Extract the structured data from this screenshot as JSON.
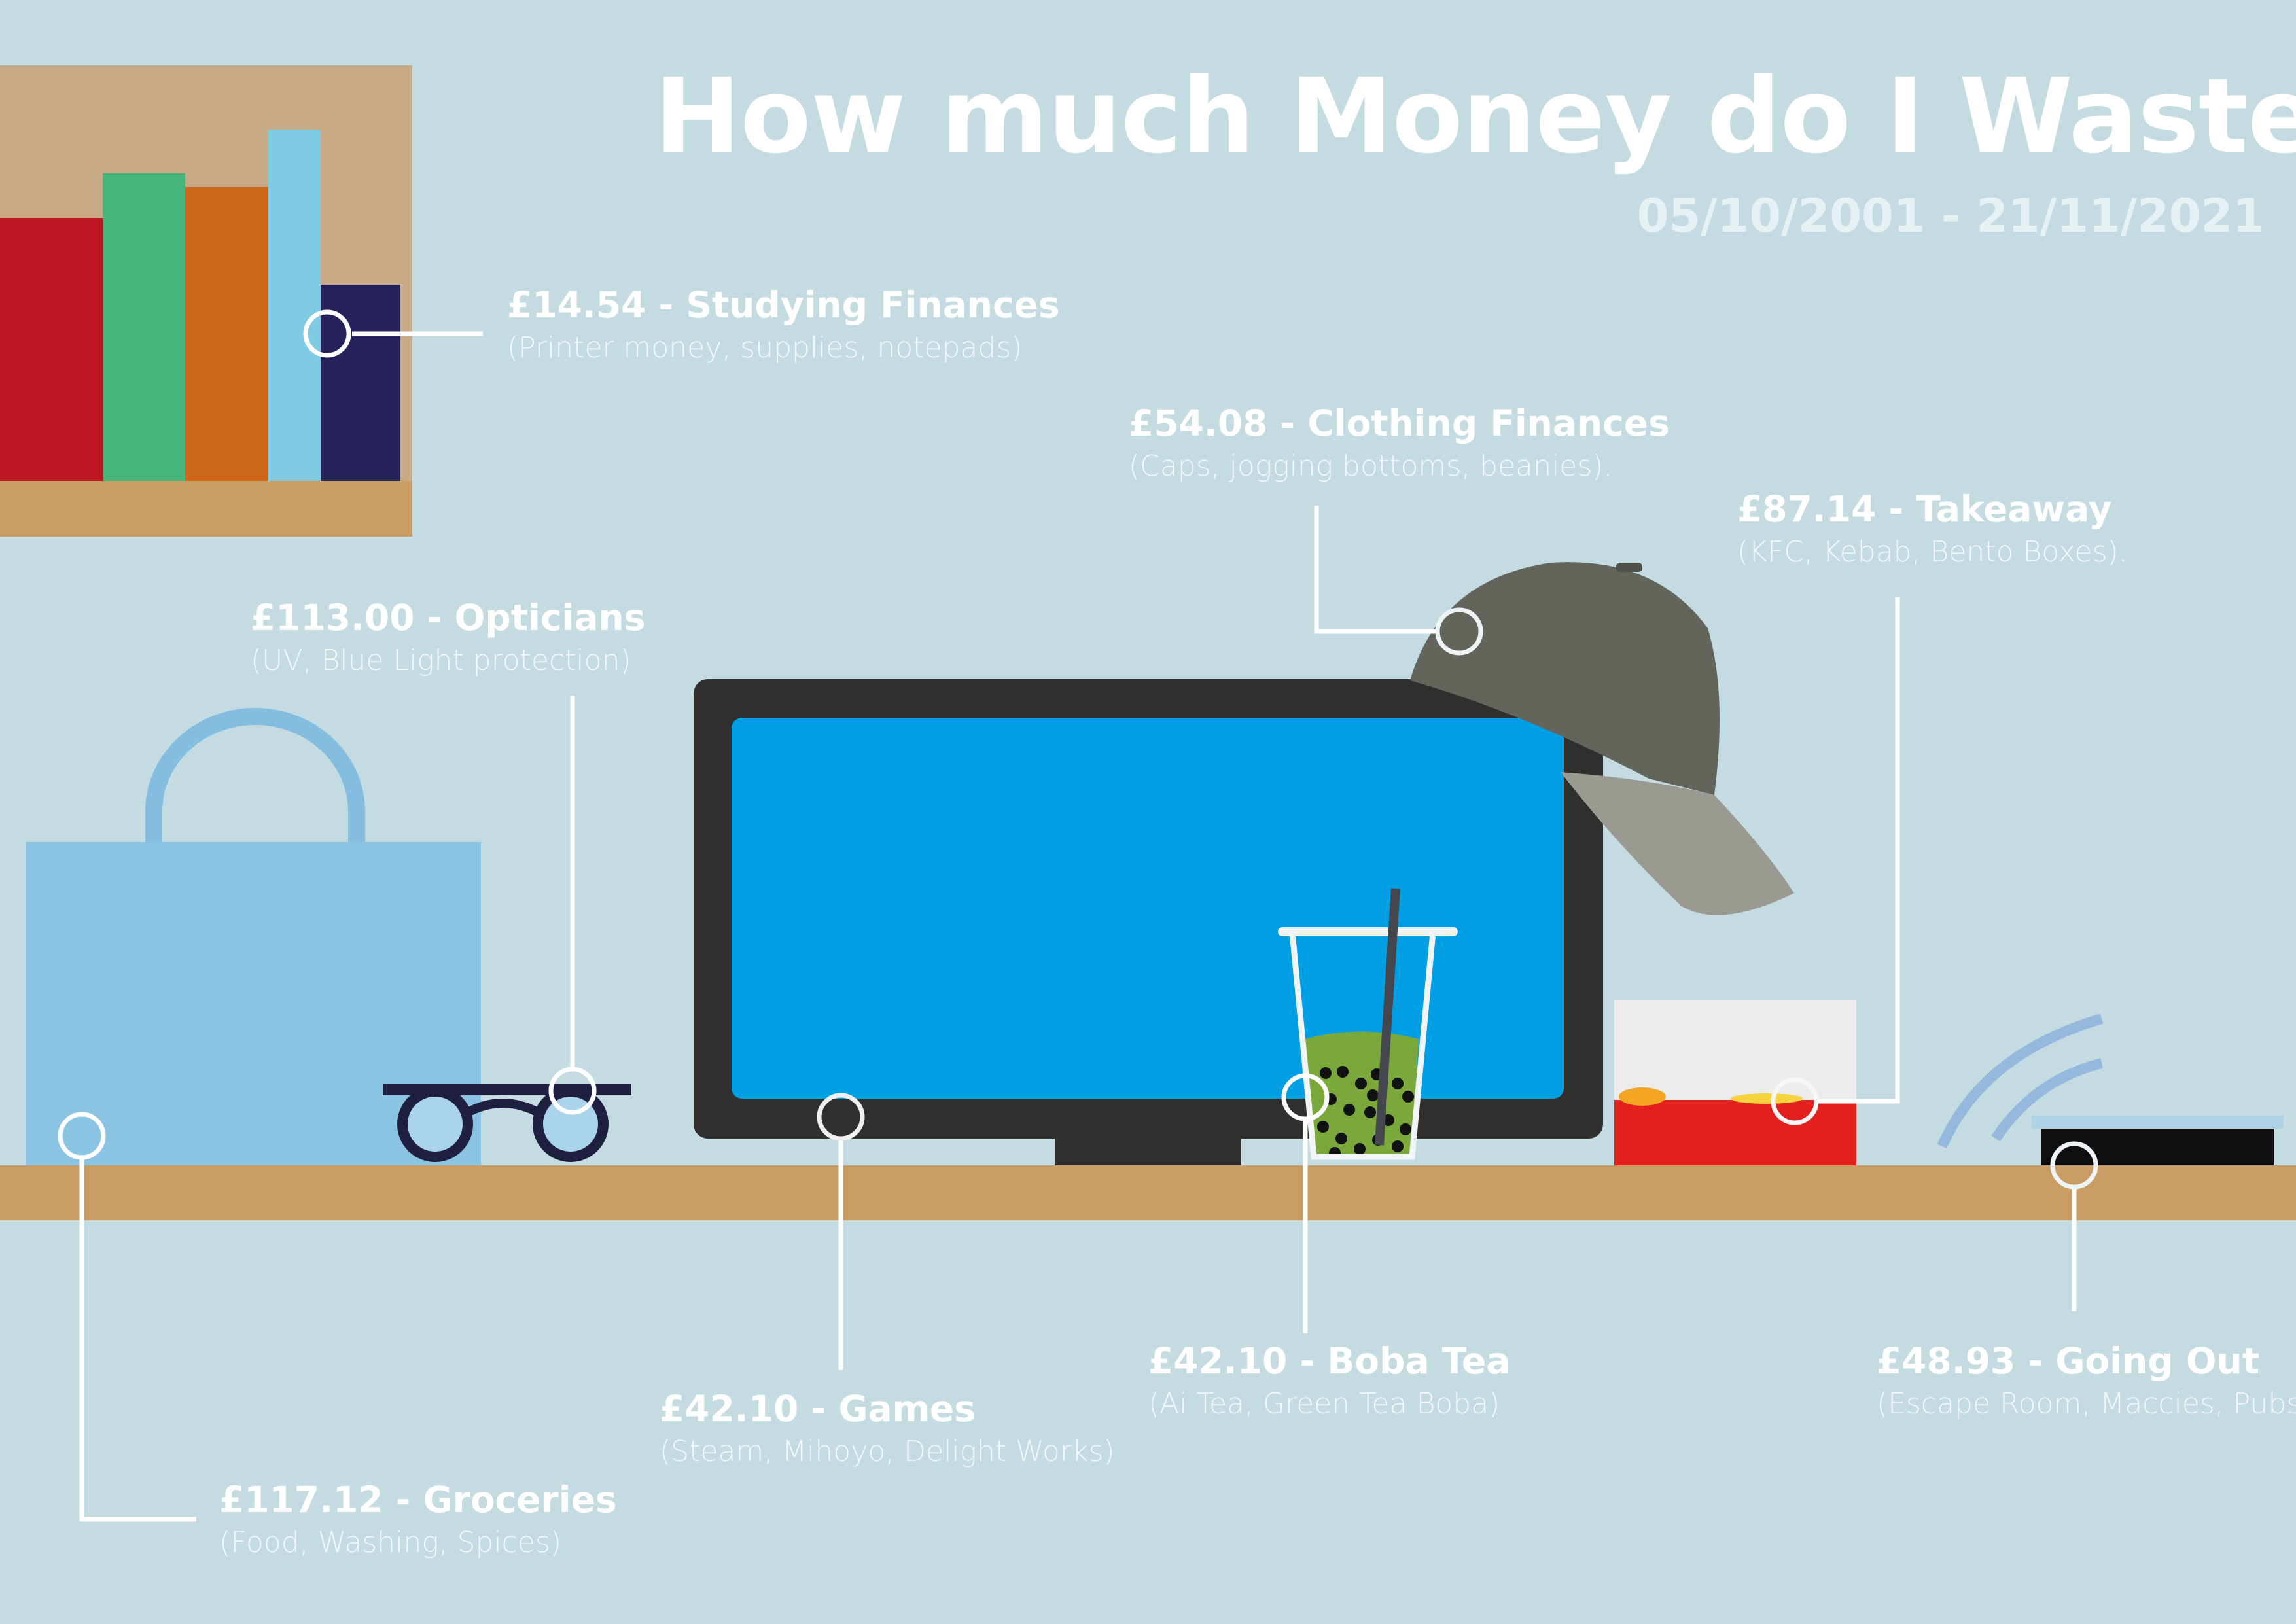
{
  "title": "How much Money do I Waste?",
  "date_range": "05/10/2001 - 21/11/2021",
  "colors": {
    "background": "#c4dbe2",
    "shelf_wood": "#c99c63",
    "monitor_screen": "#009fe3",
    "callout_line": "#ffffff"
  },
  "items": {
    "studying": {
      "label": "£14.54 - Studying Finances",
      "note": "(Printer money, supplies, notepads)",
      "icon": "books-icon"
    },
    "clothing": {
      "label": "£54.08 - Clothing Finances",
      "note": "(Caps, jogging bottoms, beanies).",
      "icon": "cap-icon"
    },
    "takeaway": {
      "label": "£87.14 - Takeaway",
      "note": "(KFC, Kebab, Bento Boxes).",
      "icon": "takeaway-box-icon"
    },
    "opticians": {
      "label": "£113.00 - Opticians",
      "note": "(UV, Blue Light protection)",
      "icon": "glasses-icon"
    },
    "groceries": {
      "label": "£117.12 - Groceries",
      "note": "(Food, Washing, Spices)",
      "icon": "shopping-bag-icon"
    },
    "games": {
      "label": "£42.10 - Games",
      "note": "(Steam, Mihoyo, Delight Works)",
      "icon": "monitor-icon"
    },
    "boba": {
      "label": "£42.10 - Boba Tea",
      "note": "(Ai Tea, Green Tea Boba)",
      "icon": "boba-cup-icon"
    },
    "going_out": {
      "label": "£48.93 - Going Out",
      "note": "(Escape Room, Maccies, Pubs)",
      "icon": "wifi-router-icon"
    }
  }
}
